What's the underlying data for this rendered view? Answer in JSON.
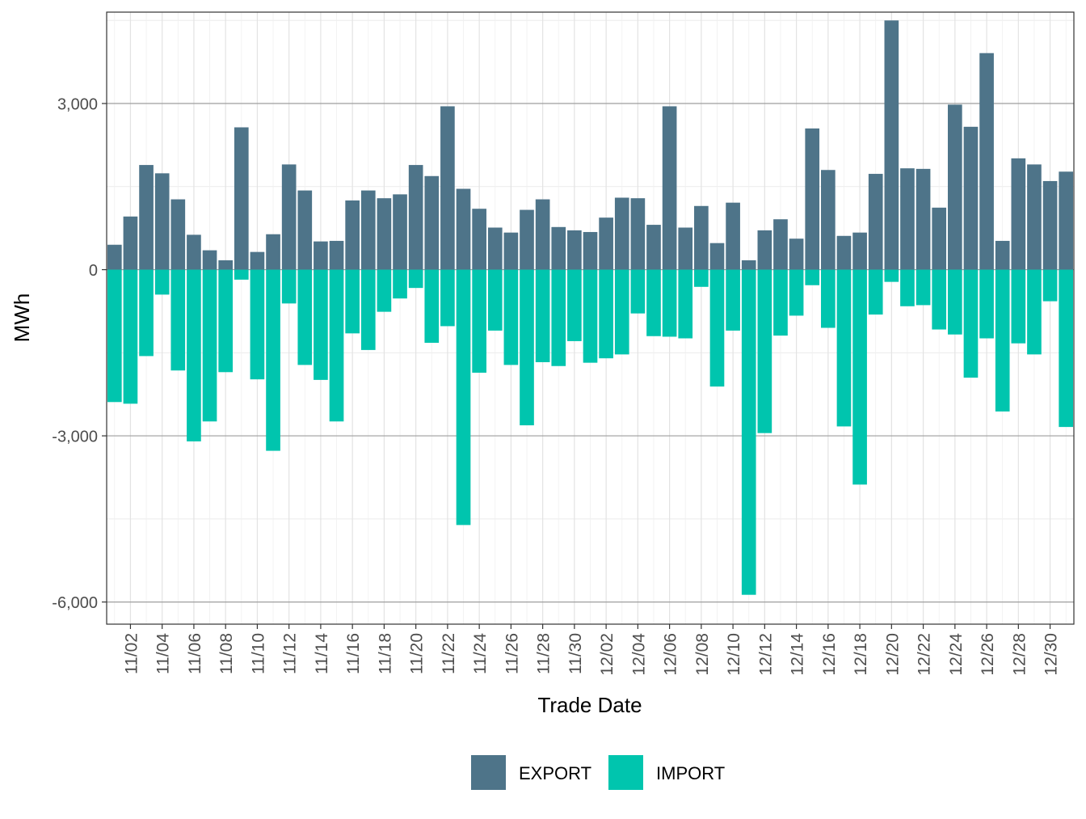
{
  "chart_data": {
    "type": "bar",
    "stacked": true,
    "title": "",
    "xlabel": "Trade Date",
    "ylabel": "MWh",
    "ylim": [
      -6400,
      4650
    ],
    "y_ticks": [
      3000,
      0,
      -3000,
      -6000
    ],
    "y_tick_labels": [
      "3,000",
      "0",
      "-3,000",
      "-6,000"
    ],
    "y_minor_ticks": [
      4500,
      1500,
      -1500,
      -4500
    ],
    "categories": [
      "11/01",
      "11/02",
      "11/03",
      "11/04",
      "11/05",
      "11/06",
      "11/07",
      "11/08",
      "11/09",
      "11/10",
      "11/11",
      "11/12",
      "11/13",
      "11/14",
      "11/15",
      "11/16",
      "11/17",
      "11/18",
      "11/19",
      "11/20",
      "11/21",
      "11/22",
      "11/23",
      "11/24",
      "11/25",
      "11/26",
      "11/27",
      "11/28",
      "11/29",
      "11/30",
      "12/01",
      "12/02",
      "12/03",
      "12/04",
      "12/05",
      "12/06",
      "12/07",
      "12/08",
      "12/09",
      "12/10",
      "12/11",
      "12/12",
      "12/13",
      "12/14",
      "12/15",
      "12/16",
      "12/17",
      "12/18",
      "12/19",
      "12/20",
      "12/21",
      "12/22",
      "12/23",
      "12/24",
      "12/25",
      "12/26",
      "12/27",
      "12/28",
      "12/29",
      "12/30",
      "12/31"
    ],
    "x_tick_labels": [
      "11/02",
      "11/04",
      "11/06",
      "11/08",
      "11/10",
      "11/12",
      "11/14",
      "11/16",
      "11/18",
      "11/20",
      "11/22",
      "11/24",
      "11/26",
      "11/28",
      "11/30",
      "12/02",
      "12/04",
      "12/06",
      "12/08",
      "12/10",
      "12/12",
      "12/14",
      "12/16",
      "12/18",
      "12/20",
      "12/22",
      "12/24",
      "12/26",
      "12/28",
      "12/30"
    ],
    "series": [
      {
        "name": "EXPORT",
        "color": "#4e7489",
        "values": [
          450,
          960,
          1890,
          1740,
          1270,
          630,
          350,
          170,
          2570,
          320,
          640,
          1900,
          1430,
          510,
          520,
          1250,
          1430,
          1290,
          1360,
          1890,
          1690,
          2950,
          1460,
          1100,
          760,
          670,
          1080,
          1270,
          770,
          710,
          680,
          940,
          1300,
          1290,
          810,
          2950,
          760,
          1150,
          480,
          1210,
          170,
          710,
          910,
          560,
          2550,
          1800,
          610,
          670,
          1730,
          4500,
          1830,
          1820,
          1120,
          2980,
          2580,
          3910,
          520,
          2010,
          1900,
          1600,
          1770
        ]
      },
      {
        "name": "IMPORT",
        "color": "#00c5ae",
        "values": [
          -2390,
          -2420,
          -1560,
          -450,
          -1820,
          -3100,
          -2740,
          -1850,
          -180,
          -1980,
          -3270,
          -610,
          -1720,
          -1990,
          -2740,
          -1150,
          -1450,
          -760,
          -520,
          -330,
          -1320,
          -1020,
          -4610,
          -1860,
          -1100,
          -1720,
          -2810,
          -1670,
          -1740,
          -1290,
          -1680,
          -1600,
          -1530,
          -790,
          -1200,
          -1210,
          -1240,
          -310,
          -2110,
          -1100,
          -5870,
          -2950,
          -1190,
          -830,
          -280,
          -1050,
          -2830,
          -3880,
          -810,
          -220,
          -660,
          -640,
          -1080,
          -1170,
          -1950,
          -1240,
          -2560,
          -1330,
          -1530,
          -570,
          -2840
        ]
      }
    ],
    "legend": {
      "position": "bottom",
      "entries": [
        "EXPORT",
        "IMPORT"
      ]
    }
  }
}
